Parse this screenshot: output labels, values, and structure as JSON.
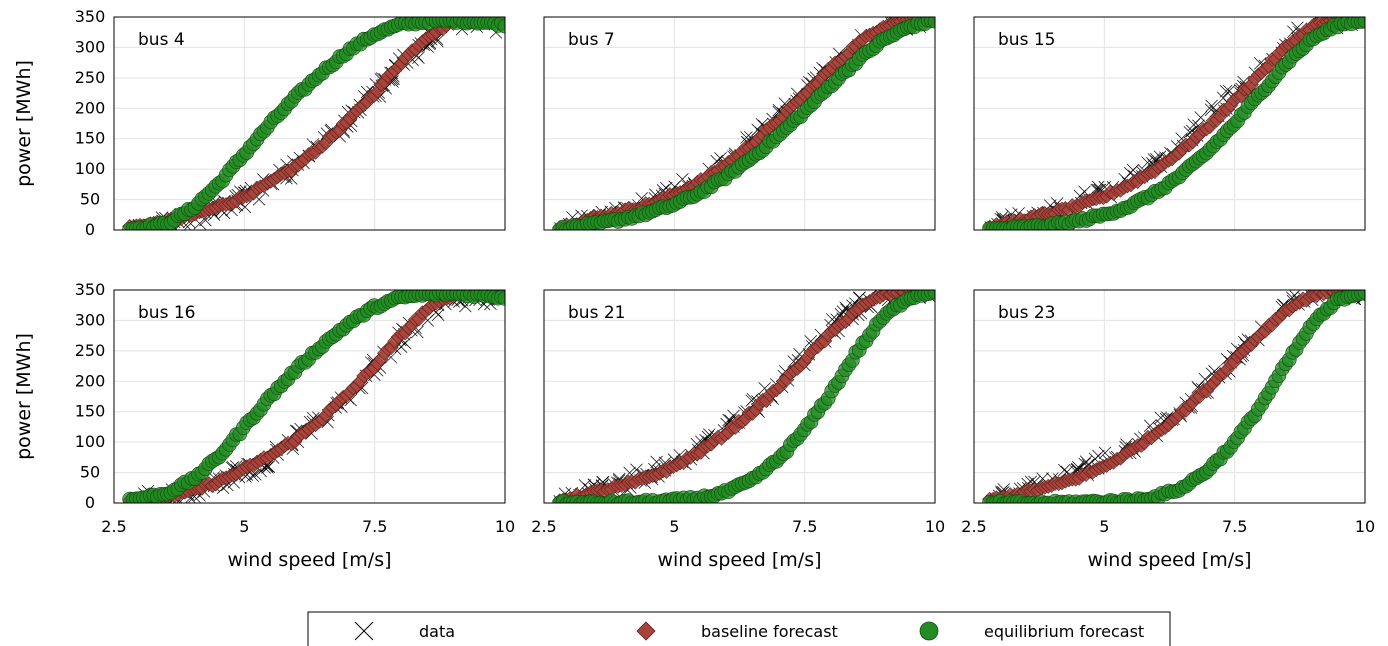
{
  "chart_data": {
    "type": "scatter",
    "layout": "2x3 grid of panels sharing axes",
    "xlabel": "wind speed [m/s]",
    "ylabel": "power [MWh]",
    "xlim": [
      2.5,
      10
    ],
    "ylim": [
      0,
      350
    ],
    "x_ticks": [
      2.5,
      5,
      7.5,
      10
    ],
    "x_tick_labels": [
      "2.5",
      "5",
      "7.5",
      "10"
    ],
    "y_ticks": [
      0,
      50,
      100,
      150,
      200,
      250,
      300,
      350
    ],
    "grid": true,
    "legend": {
      "placement": "bottom-center",
      "entries": [
        {
          "label": "data",
          "marker": "x",
          "color": "#000000"
        },
        {
          "label": "baseline forecast",
          "marker": "diamond",
          "color": "#a8433b"
        },
        {
          "label": "equilibrium forecast",
          "marker": "circle",
          "color": "#228b22"
        }
      ]
    },
    "panels": [
      {
        "label": "bus 4",
        "data": {
          "x": [
            2.8,
            3.5,
            4.0,
            4.5,
            5.0,
            5.5,
            6.0,
            6.5,
            7.0,
            7.5,
            8.0,
            8.5,
            9.0,
            9.5,
            10.0
          ],
          "y": [
            2,
            8,
            20,
            35,
            52,
            75,
            105,
            140,
            180,
            225,
            270,
            310,
            335,
            340,
            338
          ]
        },
        "baseline": {
          "x": [
            2.8,
            3.5,
            4.0,
            4.5,
            5.0,
            5.5,
            6.0,
            6.5,
            7.0,
            7.5,
            8.0,
            8.5,
            9.0,
            9.5,
            10.0
          ],
          "y": [
            4,
            14,
            25,
            38,
            55,
            78,
            105,
            140,
            180,
            225,
            275,
            318,
            342,
            348,
            350
          ]
        },
        "equilibrium": {
          "x": [
            2.8,
            3.5,
            4.0,
            4.5,
            5.0,
            5.5,
            6.0,
            6.5,
            7.0,
            7.5,
            8.0,
            8.5,
            9.0,
            9.5,
            10.0
          ],
          "y": [
            2,
            10,
            35,
            75,
            125,
            175,
            220,
            260,
            295,
            322,
            338,
            343,
            344,
            342,
            338
          ]
        }
      },
      {
        "label": "bus 7",
        "data": {
          "x": [
            2.8,
            3.5,
            4.0,
            4.5,
            5.0,
            5.5,
            6.0,
            6.5,
            7.0,
            7.5,
            8.0,
            8.5,
            9.0,
            9.5,
            10.0
          ],
          "y": [
            3,
            18,
            30,
            45,
            62,
            85,
            112,
            145,
            185,
            225,
            265,
            305,
            335,
            345,
            345
          ]
        },
        "baseline": {
          "x": [
            2.8,
            3.5,
            4.0,
            4.5,
            5.0,
            5.5,
            6.0,
            6.5,
            7.0,
            7.5,
            8.0,
            8.5,
            9.0,
            9.5,
            10.0
          ],
          "y": [
            4,
            20,
            30,
            42,
            58,
            80,
            108,
            142,
            180,
            222,
            265,
            305,
            335,
            348,
            350
          ]
        },
        "equilibrium": {
          "x": [
            2.8,
            3.5,
            4.0,
            4.5,
            5.0,
            5.5,
            6.0,
            6.5,
            7.0,
            7.5,
            8.0,
            8.5,
            9.0,
            9.5,
            10.0
          ],
          "y": [
            2,
            10,
            18,
            28,
            42,
            62,
            88,
            120,
            155,
            195,
            238,
            278,
            312,
            334,
            345
          ]
        }
      },
      {
        "label": "bus 15",
        "data": {
          "x": [
            2.8,
            3.5,
            4.0,
            4.5,
            5.0,
            5.5,
            6.0,
            6.5,
            7.0,
            7.5,
            8.0,
            8.5,
            9.0,
            9.5,
            10.0
          ],
          "y": [
            3,
            18,
            30,
            45,
            62,
            85,
            112,
            145,
            185,
            228,
            270,
            308,
            335,
            345,
            345
          ]
        },
        "baseline": {
          "x": [
            2.8,
            3.5,
            4.0,
            4.5,
            5.0,
            5.5,
            6.0,
            6.5,
            7.0,
            7.5,
            8.0,
            8.5,
            9.0,
            9.5,
            10.0
          ],
          "y": [
            4,
            18,
            28,
            40,
            55,
            75,
            100,
            132,
            170,
            212,
            258,
            302,
            335,
            348,
            350
          ]
        },
        "equilibrium": {
          "x": [
            2.8,
            3.5,
            4.0,
            4.5,
            5.0,
            5.5,
            6.0,
            6.5,
            7.0,
            7.5,
            8.0,
            8.5,
            9.0,
            9.5,
            10.0
          ],
          "y": [
            1,
            4,
            8,
            15,
            25,
            40,
            62,
            92,
            130,
            175,
            225,
            275,
            315,
            338,
            345
          ]
        }
      },
      {
        "label": "bus 16",
        "data": {
          "x": [
            2.8,
            3.5,
            4.0,
            4.5,
            5.0,
            5.5,
            6.0,
            6.5,
            7.0,
            7.5,
            8.0,
            8.5,
            9.0,
            9.5,
            10.0
          ],
          "y": [
            2,
            8,
            20,
            35,
            52,
            75,
            105,
            140,
            180,
            225,
            270,
            310,
            335,
            340,
            338
          ]
        },
        "baseline": {
          "x": [
            2.8,
            3.5,
            4.0,
            4.5,
            5.0,
            5.5,
            6.0,
            6.5,
            7.0,
            7.5,
            8.0,
            8.5,
            9.0,
            9.5,
            10.0
          ],
          "y": [
            4,
            10,
            20,
            35,
            55,
            78,
            105,
            140,
            180,
            225,
            275,
            318,
            342,
            348,
            350
          ]
        },
        "equilibrium": {
          "x": [
            2.8,
            3.5,
            4.0,
            4.5,
            5.0,
            5.5,
            6.0,
            6.5,
            7.0,
            7.5,
            8.0,
            8.5,
            9.0,
            9.5,
            10.0
          ],
          "y": [
            5,
            15,
            38,
            75,
            125,
            175,
            220,
            260,
            295,
            322,
            338,
            343,
            344,
            342,
            338
          ]
        }
      },
      {
        "label": "bus 21",
        "data": {
          "x": [
            2.8,
            3.5,
            4.0,
            4.5,
            5.0,
            5.5,
            6.0,
            6.5,
            7.0,
            7.5,
            8.0,
            8.5,
            9.0,
            9.5,
            10.0
          ],
          "y": [
            4,
            20,
            32,
            48,
            68,
            92,
            120,
            155,
            195,
            240,
            285,
            322,
            345,
            350,
            350
          ]
        },
        "baseline": {
          "x": [
            2.8,
            3.5,
            4.0,
            4.5,
            5.0,
            5.5,
            6.0,
            6.5,
            7.0,
            7.5,
            8.0,
            8.5,
            9.0,
            9.5,
            10.0
          ],
          "y": [
            4,
            18,
            28,
            42,
            60,
            85,
            115,
            150,
            190,
            235,
            278,
            318,
            342,
            350,
            350
          ]
        },
        "equilibrium": {
          "x": [
            2.8,
            3.5,
            4.0,
            4.5,
            5.0,
            5.5,
            6.0,
            6.5,
            7.0,
            7.5,
            8.0,
            8.5,
            9.0,
            9.5,
            10.0
          ],
          "y": [
            0,
            0,
            1,
            2,
            4,
            8,
            18,
            38,
            72,
            120,
            180,
            248,
            305,
            338,
            348
          ]
        }
      },
      {
        "label": "bus 23",
        "data": {
          "x": [
            2.8,
            3.5,
            4.0,
            4.5,
            5.0,
            5.5,
            6.0,
            6.5,
            7.0,
            7.5,
            8.0,
            8.5,
            9.0,
            9.5,
            10.0
          ],
          "y": [
            4,
            20,
            32,
            48,
            68,
            92,
            120,
            155,
            195,
            240,
            285,
            322,
            345,
            350,
            350
          ]
        },
        "baseline": {
          "x": [
            2.8,
            3.5,
            4.0,
            4.5,
            5.0,
            5.5,
            6.0,
            6.5,
            7.0,
            7.5,
            8.0,
            8.5,
            9.0,
            9.5,
            10.0
          ],
          "y": [
            4,
            18,
            28,
            42,
            60,
            85,
            115,
            150,
            190,
            235,
            278,
            318,
            342,
            350,
            350
          ]
        },
        "equilibrium": {
          "x": [
            2.8,
            3.5,
            4.0,
            4.5,
            5.0,
            5.5,
            6.0,
            6.5,
            7.0,
            7.5,
            8.0,
            8.5,
            9.0,
            9.5,
            10.0
          ],
          "y": [
            0,
            0,
            0,
            1,
            2,
            4,
            10,
            25,
            55,
            100,
            160,
            230,
            295,
            335,
            348
          ]
        }
      }
    ]
  }
}
